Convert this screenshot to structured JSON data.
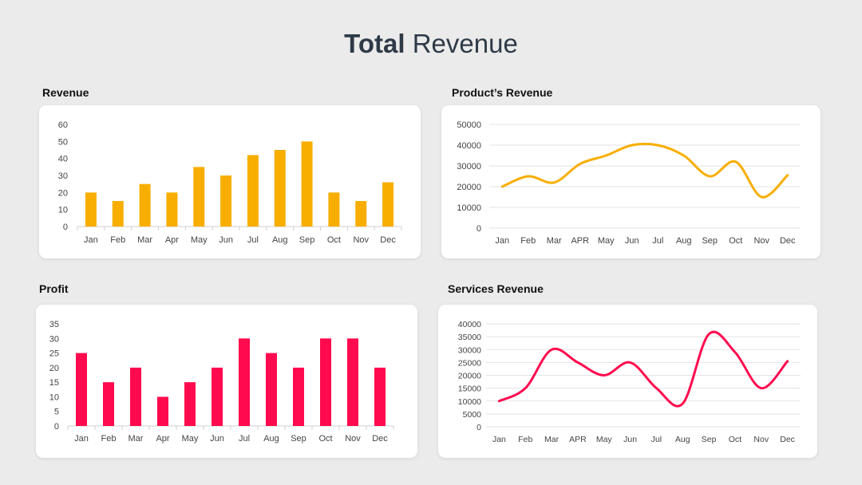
{
  "title": {
    "bold": "Total",
    "rest": "Revenue"
  },
  "colors": {
    "yellow": "#f7ae00",
    "red": "#ff0a4e",
    "grid": "#e3e3e3",
    "axis": "#cfcfcf"
  },
  "chart_data": [
    {
      "id": "revenue",
      "type": "bar",
      "title": "Revenue",
      "categories": [
        "Jan",
        "Feb",
        "Mar",
        "Apr",
        "May",
        "Jun",
        "Jul",
        "Aug",
        "Sep",
        "Oct",
        "Nov",
        "Dec"
      ],
      "values": [
        20,
        15,
        25,
        20,
        35,
        30,
        42,
        45,
        50,
        20,
        15,
        26
      ],
      "ylim": [
        0,
        60
      ],
      "yticks": [
        0,
        10,
        20,
        30,
        40,
        50,
        60
      ],
      "grid": false,
      "color": "#f7ae00"
    },
    {
      "id": "products",
      "type": "line",
      "title": "Product’s Revenue",
      "categories": [
        "Jan",
        "Feb",
        "Mar",
        "APR",
        "May",
        "Jun",
        "Jul",
        "Aug",
        "Sep",
        "Oct",
        "Nov",
        "Dec"
      ],
      "values": [
        20000,
        25000,
        22000,
        31000,
        35000,
        40000,
        40000,
        35000,
        25000,
        32000,
        15000,
        25500
      ],
      "ylim": [
        0,
        50000
      ],
      "yticks": [
        0,
        10000,
        20000,
        30000,
        40000,
        50000
      ],
      "grid": true,
      "smooth": true,
      "color": "#f7ae00"
    },
    {
      "id": "profit",
      "type": "bar",
      "title": "Profit",
      "categories": [
        "Jan",
        "Feb",
        "Mar",
        "Apr",
        "May",
        "Jun",
        "Jul",
        "Aug",
        "Sep",
        "Oct",
        "Nov",
        "Dec"
      ],
      "values": [
        25,
        15,
        20,
        10,
        15,
        20,
        30,
        25,
        20,
        30,
        30,
        20
      ],
      "ylim": [
        0,
        35
      ],
      "yticks": [
        0,
        5,
        10,
        15,
        20,
        25,
        30,
        35
      ],
      "grid": false,
      "color": "#ff0a4e"
    },
    {
      "id": "services",
      "type": "line",
      "title": "Services Revenue",
      "categories": [
        "Jan",
        "Feb",
        "Mar",
        "APR",
        "May",
        "Jun",
        "Jul",
        "Aug",
        "Sep",
        "Oct",
        "Nov",
        "Dec"
      ],
      "values": [
        10000,
        15000,
        30000,
        25000,
        20000,
        25000,
        15000,
        9000,
        36000,
        29000,
        15000,
        25500
      ],
      "ylim": [
        0,
        40000
      ],
      "yticks": [
        0,
        5000,
        10000,
        15000,
        20000,
        25000,
        30000,
        35000,
        40000
      ],
      "grid": true,
      "smooth": true,
      "color": "#ff0a4e"
    }
  ]
}
